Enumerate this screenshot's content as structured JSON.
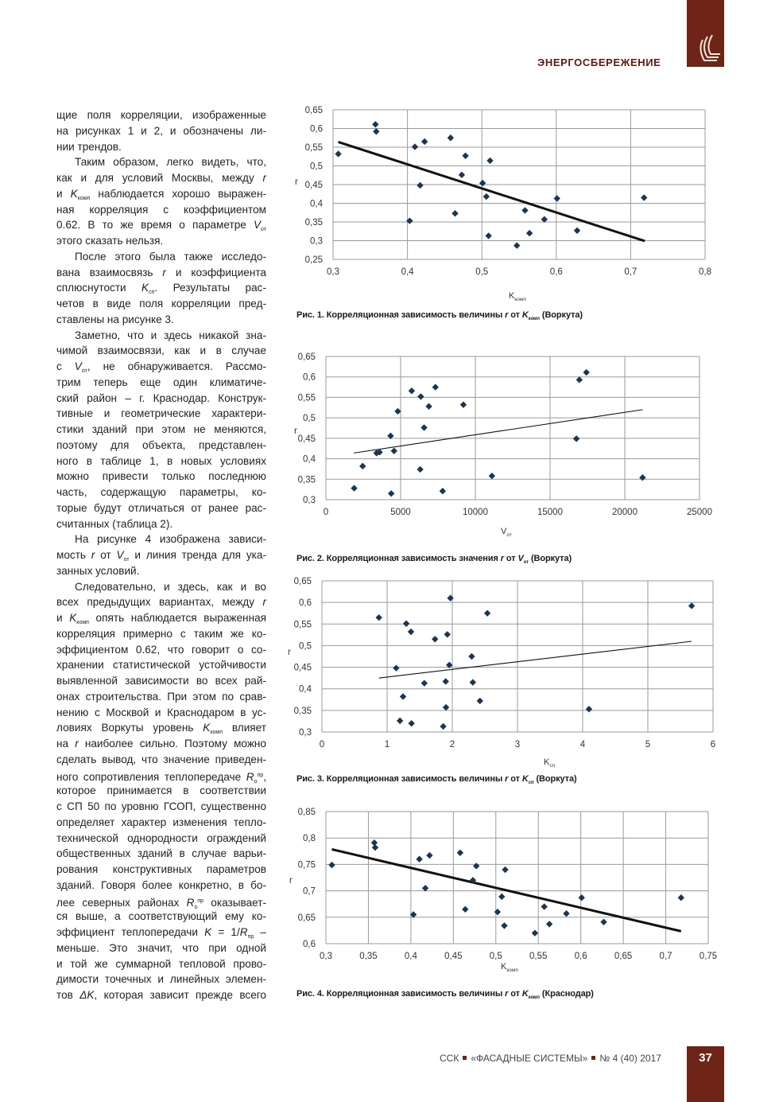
{
  "header": {
    "section": "ЭНЕРГОСБЕРЕЖЕНИЕ",
    "brand_color": "#6e2416"
  },
  "footer": {
    "journal": "ССК",
    "title": "«ФАСАДНЫЕ СИСТЕМЫ»",
    "issue": "№ 4 (40) 2017",
    "page": "37"
  },
  "body": {
    "lines": [
      {
        "p": "first",
        "s": [
          "щие поля корреляции, изображенные"
        ]
      },
      {
        "s": [
          "на рисунках 1 и 2, и обозначены ли-"
        ]
      },
      {
        "last": true,
        "s": [
          "нии трендов."
        ]
      },
      {
        "p": "ind",
        "s": [
          "Таким образом, легко видеть, что,"
        ]
      },
      {
        "s": [
          "как и для условий Москвы, между ",
          {
            "t": "r",
            "f": "i"
          }
        ]
      },
      {
        "s": [
          "и ",
          {
            "t": "K",
            "f": "i"
          },
          {
            "t": "комп",
            "f": "sub"
          },
          " наблюдается хорошо выражен-"
        ]
      },
      {
        "s": [
          "ная корреляция с коэффициентом"
        ]
      },
      {
        "s": [
          "0.62. В то же время о параметре ",
          {
            "t": "V",
            "f": "i"
          },
          {
            "t": "от",
            "f": "sub"
          }
        ]
      },
      {
        "last": true,
        "s": [
          "этого сказать нельзя."
        ]
      },
      {
        "p": "ind",
        "s": [
          "После этого была также исследо-"
        ]
      },
      {
        "s": [
          "вана взаимосвязь ",
          {
            "t": "r",
            "f": "i"
          },
          " и коэффициента"
        ]
      },
      {
        "s": [
          "сплюснутости ",
          {
            "t": "K",
            "f": "i"
          },
          {
            "t": "сп",
            "f": "sub"
          },
          ". Результаты рас-"
        ]
      },
      {
        "s": [
          "четов в виде поля корреляции пред-"
        ]
      },
      {
        "last": true,
        "s": [
          "ставлены на рисунке 3."
        ]
      },
      {
        "p": "ind",
        "s": [
          "Заметно, что и здесь никакой зна-"
        ]
      },
      {
        "s": [
          "чимой взаимосвязи, как и в случае"
        ]
      },
      {
        "s": [
          "с ",
          {
            "t": "V",
            "f": "i"
          },
          {
            "t": "от",
            "f": "sub"
          },
          ", не обнаруживается. Рассмо-"
        ]
      },
      {
        "s": [
          "трим теперь еще один климатиче-"
        ]
      },
      {
        "s": [
          "ский район – г. Краснодар. Конструк-"
        ]
      },
      {
        "s": [
          "тивные и геометрические характери-"
        ]
      },
      {
        "s": [
          "стики зданий при этом не меняются,"
        ]
      },
      {
        "s": [
          "поэтому для объекта, представлен-"
        ]
      },
      {
        "s": [
          "ного в таблице 1, в новых условиях"
        ]
      },
      {
        "s": [
          "можно привести только последнюю"
        ]
      },
      {
        "s": [
          "часть, содержащую параметры, ко-"
        ]
      },
      {
        "s": [
          "торые будут отличаться от ранее рас-"
        ]
      },
      {
        "last": true,
        "s": [
          "считанных (таблица 2)."
        ]
      },
      {
        "p": "ind",
        "s": [
          "На рисунке 4 изображена зависи-"
        ]
      },
      {
        "s": [
          "мость ",
          {
            "t": "r",
            "f": "i"
          },
          " от ",
          {
            "t": "V",
            "f": "i"
          },
          {
            "t": "от",
            "f": "sub"
          },
          " и линия тренда для ука-"
        ]
      },
      {
        "last": true,
        "s": [
          "занных условий."
        ]
      },
      {
        "p": "ind",
        "s": [
          "Следовательно, и здесь, как и во"
        ]
      },
      {
        "s": [
          "всех предыдущих вариантах, между ",
          {
            "t": "r",
            "f": "i"
          }
        ]
      },
      {
        "s": [
          "и ",
          {
            "t": "K",
            "f": "i"
          },
          {
            "t": "комп",
            "f": "sub"
          },
          " опять наблюдается выраженная"
        ]
      },
      {
        "s": [
          "корреляция примерно с таким же ко-"
        ]
      },
      {
        "s": [
          "эффициентом 0.62, что говорит о со-"
        ]
      },
      {
        "s": [
          "хранении статистической устойчивости"
        ]
      },
      {
        "s": [
          "выявленной зависимости во всех рай-"
        ]
      },
      {
        "s": [
          "онах строительства. При этом по срав-"
        ]
      },
      {
        "s": [
          "нению с Москвой и Краснодаром в ус-"
        ]
      },
      {
        "s": [
          "ловиях Воркуты уровень ",
          {
            "t": "K",
            "f": "i"
          },
          {
            "t": "комп",
            "f": "sub"
          },
          " влияет"
        ]
      },
      {
        "s": [
          "на ",
          {
            "t": "r",
            "f": "i"
          },
          " наиболее сильно. Поэтому можно"
        ]
      },
      {
        "s": [
          "сделать вывод, что значение приведен-"
        ]
      },
      {
        "s": [
          "ного сопротивления теплопередаче ",
          {
            "t": "R",
            "f": "i"
          },
          {
            "t": "о",
            "f": "sub"
          },
          {
            "t": "пр",
            "f": "sup"
          },
          ","
        ]
      },
      {
        "s": [
          "которое принимается в соответствии"
        ]
      },
      {
        "s": [
          "с СП 50 по уровню ГСОП, существенно"
        ]
      },
      {
        "s": [
          "определяет характер изменения тепло-"
        ]
      },
      {
        "s": [
          "технической однородности ограждений"
        ]
      },
      {
        "s": [
          "общественных зданий в случае варьи-"
        ]
      },
      {
        "s": [
          "рования конструктивных параметров"
        ]
      },
      {
        "s": [
          "зданий. Говоря более конкретно, в бо-"
        ]
      },
      {
        "s": [
          "лее северных районах ",
          {
            "t": "R",
            "f": "i"
          },
          {
            "t": "о",
            "f": "sub"
          },
          {
            "t": "пр",
            "f": "sup"
          },
          " оказывает-"
        ]
      },
      {
        "s": [
          "ся выше, а соответствующий ему ко-"
        ]
      },
      {
        "s": [
          "эффициент теплопередачи ",
          {
            "t": "K",
            "f": "i"
          },
          " = 1/",
          {
            "t": "R",
            "f": "i"
          },
          {
            "t": "пр",
            "f": "sub"
          },
          " –"
        ]
      },
      {
        "s": [
          "меньше. Это значит, что при одной"
        ]
      },
      {
        "s": [
          "и той же суммарной тепловой прово-"
        ]
      },
      {
        "s": [
          "димости точечных и линейных элемен-"
        ]
      },
      {
        "s": [
          "тов ",
          {
            "t": "ΔK",
            "f": "i"
          },
          ", которая зависит прежде всего"
        ]
      }
    ]
  },
  "chart_data": [
    {
      "type": "scatter",
      "title": "Рис. 1. Корреляционная зависимость величины r от K комп (Воркута)",
      "caption": [
        "Рис. 1. Корреляционная зависимость величины ",
        {
          "t": "r",
          "f": "i"
        },
        " от ",
        {
          "t": "K",
          "f": "i"
        },
        {
          "t": "комп",
          "f": "sub"
        },
        " (Воркута)"
      ],
      "xlabel": {
        "main": "K",
        "sub": "комп"
      },
      "ylabel": "r",
      "xlim": [
        0.3,
        0.8
      ],
      "ylim": [
        0.25,
        0.65
      ],
      "grid": true,
      "x_ticks": [
        "0,3",
        "0,4",
        "0,5",
        "0,6",
        "0,7",
        "0,8"
      ],
      "y_ticks": [
        "0,25",
        "0,3",
        "0,35",
        "0,4",
        "0,45",
        "0,5",
        "0,55",
        "0,6",
        "0,65"
      ],
      "points": [
        [
          0.307,
          0.532
        ],
        [
          0.357,
          0.611
        ],
        [
          0.358,
          0.592
        ],
        [
          0.41,
          0.551
        ],
        [
          0.423,
          0.565
        ],
        [
          0.403,
          0.353
        ],
        [
          0.417,
          0.448
        ],
        [
          0.458,
          0.575
        ],
        [
          0.478,
          0.527
        ],
        [
          0.473,
          0.476
        ],
        [
          0.464,
          0.373
        ],
        [
          0.501,
          0.454
        ],
        [
          0.511,
          0.514
        ],
        [
          0.506,
          0.418
        ],
        [
          0.509,
          0.313
        ],
        [
          0.547,
          0.287
        ],
        [
          0.558,
          0.381
        ],
        [
          0.564,
          0.32
        ],
        [
          0.584,
          0.357
        ],
        [
          0.601,
          0.413
        ],
        [
          0.628,
          0.327
        ],
        [
          0.718,
          0.415
        ]
      ],
      "trend": [
        [
          0.307,
          0.564
        ],
        [
          0.719,
          0.299
        ]
      ],
      "trend_weight": "thick",
      "marker_color": "#1b3552"
    },
    {
      "type": "scatter",
      "title": "Рис. 2. Корреляционная зависимость значения r от V от (Воркута)",
      "caption": [
        "Рис. 2. Корреляционная зависимость значения ",
        {
          "t": "r",
          "f": "i"
        },
        " от ",
        {
          "t": "V",
          "f": "i"
        },
        {
          "t": "от",
          "f": "sub"
        },
        " (Воркута)"
      ],
      "xlabel": {
        "main": "V",
        "sub": "от"
      },
      "ylabel": "r",
      "xlim": [
        0,
        25000
      ],
      "ylim": [
        0.3,
        0.65
      ],
      "grid": true,
      "x_ticks": [
        "0",
        "5000",
        "10000",
        "15000",
        "20000",
        "25000"
      ],
      "y_ticks": [
        "0,3",
        "0,35",
        "0,4",
        "0,45",
        "0,5",
        "0,55",
        "0,6",
        "0,65"
      ],
      "points": [
        [
          1890,
          0.328
        ],
        [
          2460,
          0.382
        ],
        [
          3390,
          0.414
        ],
        [
          3590,
          0.416
        ],
        [
          4330,
          0.456
        ],
        [
          4560,
          0.419
        ],
        [
          4370,
          0.315
        ],
        [
          4810,
          0.516
        ],
        [
          5740,
          0.566
        ],
        [
          6350,
          0.552
        ],
        [
          6310,
          0.374
        ],
        [
          6570,
          0.476
        ],
        [
          6890,
          0.528
        ],
        [
          7330,
          0.575
        ],
        [
          7810,
          0.321
        ],
        [
          9200,
          0.532
        ],
        [
          11110,
          0.358
        ],
        [
          16760,
          0.449
        ],
        [
          16960,
          0.593
        ],
        [
          17430,
          0.611
        ],
        [
          21190,
          0.354
        ]
      ],
      "trend": [
        [
          1870,
          0.414
        ],
        [
          21190,
          0.52
        ]
      ],
      "trend_weight": "thin",
      "marker_color": "#1b3552"
    },
    {
      "type": "scatter",
      "title": "Рис. 3. Корреляционная зависимость величины r от K сп (Воркута)",
      "caption": [
        "Рис. 3. Корреляционная зависимость величины ",
        {
          "t": "r",
          "f": "i"
        },
        " от ",
        {
          "t": "K",
          "f": "i"
        },
        {
          "t": "сп",
          "f": "sub"
        },
        " (Воркута)"
      ],
      "xlabel": {
        "main": "K",
        "sub": "сп"
      },
      "ylabel": "r",
      "xlim": [
        0,
        6
      ],
      "ylim": [
        0.3,
        0.65
      ],
      "grid": true,
      "x_ticks": [
        "0",
        "1",
        "2",
        "3",
        "4",
        "5",
        "6"
      ],
      "y_ticks": [
        "0,3",
        "0,35",
        "0,4",
        "0,45",
        "0,5",
        "0,55",
        "0,6",
        "0,65"
      ],
      "points": [
        [
          0.874,
          0.565
        ],
        [
          1.139,
          0.448
        ],
        [
          1.294,
          0.551
        ],
        [
          1.366,
          0.532
        ],
        [
          1.244,
          0.382
        ],
        [
          1.197,
          0.326
        ],
        [
          1.374,
          0.32
        ],
        [
          1.735,
          0.515
        ],
        [
          1.571,
          0.413
        ],
        [
          1.861,
          0.313
        ],
        [
          1.903,
          0.357
        ],
        [
          1.899,
          0.417
        ],
        [
          1.924,
          0.526
        ],
        [
          1.954,
          0.455
        ],
        [
          1.971,
          0.61
        ],
        [
          2.298,
          0.475
        ],
        [
          2.315,
          0.415
        ],
        [
          2.424,
          0.372
        ],
        [
          2.538,
          0.575
        ],
        [
          4.097,
          0.353
        ],
        [
          5.672,
          0.592
        ]
      ],
      "trend": [
        [
          0.874,
          0.425
        ],
        [
          5.672,
          0.51
        ]
      ],
      "trend_weight": "thin",
      "marker_color": "#1b3552"
    },
    {
      "type": "scatter",
      "title": "Рис. 4. Корреляционная зависимость величины r от K комп (Краснодар)",
      "caption": [
        "Рис. 4. Корреляционная зависимость величины ",
        {
          "t": "r",
          "f": "i"
        },
        " от ",
        {
          "t": "K",
          "f": "i"
        },
        {
          "t": "комп",
          "f": "sub"
        },
        " (Краснодар)"
      ],
      "xlabel": {
        "main": "K",
        "sub": "комп"
      },
      "ylabel": "r",
      "xlim": [
        0.3,
        0.75
      ],
      "ylim": [
        0.6,
        0.85
      ],
      "grid": true,
      "x_ticks": [
        "0,3",
        "0,35",
        "0,4",
        "0,45",
        "0,5",
        "0,55",
        "0,6",
        "0,65",
        "0,7",
        "0,75"
      ],
      "y_ticks": [
        "0,6",
        "0,65",
        "0,7",
        "0,75",
        "0,8",
        "0,85"
      ],
      "points": [
        [
          0.307,
          0.749
        ],
        [
          0.357,
          0.791
        ],
        [
          0.358,
          0.782
        ],
        [
          0.41,
          0.76
        ],
        [
          0.422,
          0.767
        ],
        [
          0.403,
          0.655
        ],
        [
          0.417,
          0.705
        ],
        [
          0.458,
          0.772
        ],
        [
          0.477,
          0.747
        ],
        [
          0.473,
          0.72
        ],
        [
          0.464,
          0.665
        ],
        [
          0.502,
          0.66
        ],
        [
          0.511,
          0.74
        ],
        [
          0.507,
          0.689
        ],
        [
          0.51,
          0.634
        ],
        [
          0.546,
          0.62
        ],
        [
          0.557,
          0.67
        ],
        [
          0.563,
          0.637
        ],
        [
          0.583,
          0.657
        ],
        [
          0.601,
          0.687
        ],
        [
          0.627,
          0.641
        ],
        [
          0.718,
          0.687
        ]
      ],
      "trend": [
        [
          0.307,
          0.7785
        ],
        [
          0.718,
          0.6235
        ]
      ],
      "trend_weight": "thick",
      "marker_color": "#1b3552"
    }
  ]
}
